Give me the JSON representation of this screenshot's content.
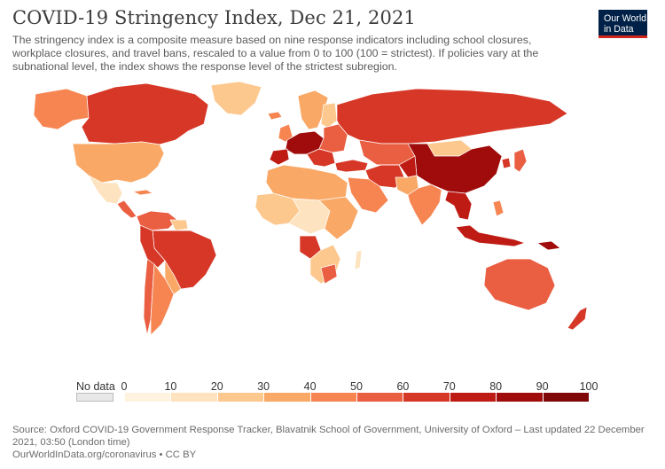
{
  "header": {
    "title": "COVID-19 Stringency Index, Dec 21, 2021",
    "subtitle": "The stringency index is a composite measure based on nine response indicators including school closures, workplace closures, and travel bans, rescaled to a value from 0 to 100 (100 = strictest). If policies vary at the subnational level, the index shows the response level of the strictest subregion."
  },
  "logo": {
    "line1": "Our World",
    "line2": "in Data",
    "bg_color": "#002147",
    "accent_color": "#ce261e"
  },
  "legend": {
    "no_data_label": "No data",
    "no_data_color": "#e8e8e8",
    "ticks": [
      "0",
      "10",
      "20",
      "30",
      "40",
      "50",
      "60",
      "70",
      "80",
      "90",
      "100"
    ],
    "bin_colors": [
      "#fff2df",
      "#fde3bf",
      "#fcc88e",
      "#f9a866",
      "#f68552",
      "#ea5e42",
      "#d63726",
      "#bf1b15",
      "#a00c0c",
      "#7f0707"
    ]
  },
  "map_colors": {
    "ocean": "#ffffff",
    "border": "#ffffff"
  },
  "footer": {
    "source": "Source: Oxford COVID-19 Government Response Tracker, Blavatnik School of Government, University of Oxford – Last updated 22 December 2021, 03:50 (London time)",
    "credit": "OurWorldInData.org/coronavirus • CC BY"
  }
}
